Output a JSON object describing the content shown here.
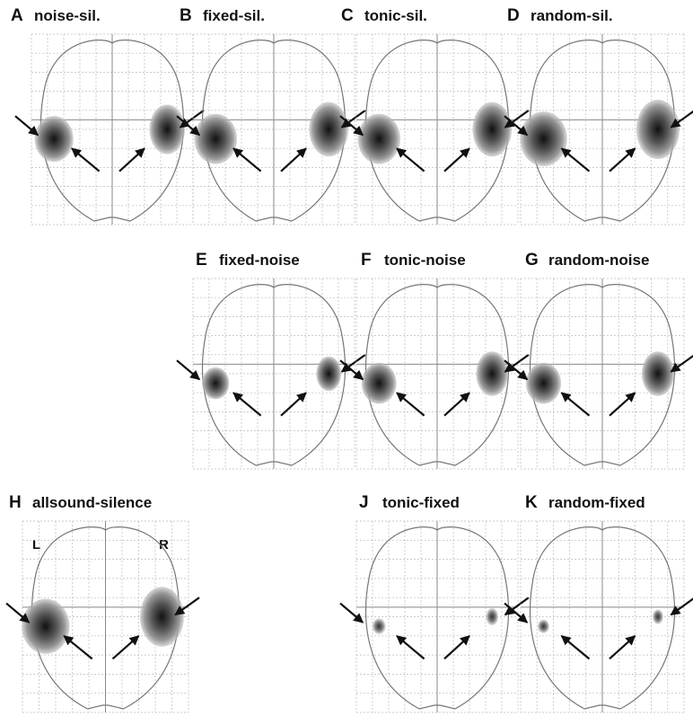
{
  "panels": [
    {
      "letter": "A",
      "label": "noise-sil."
    },
    {
      "letter": "B",
      "label": "fixed-sil."
    },
    {
      "letter": "C",
      "label": "tonic-sil."
    },
    {
      "letter": "D",
      "label": "random-sil."
    },
    {
      "letter": "E",
      "label": "fixed-noise"
    },
    {
      "letter": "F",
      "label": "tonic-noise"
    },
    {
      "letter": "G",
      "label": "random-noise"
    },
    {
      "letter": "H",
      "label": "allsound-silence"
    },
    {
      "letter": "J",
      "label": "tonic-fixed"
    },
    {
      "letter": "K",
      "label": "random-fixed"
    }
  ],
  "hemisphere_labels": {
    "left": "L",
    "right": "R"
  }
}
